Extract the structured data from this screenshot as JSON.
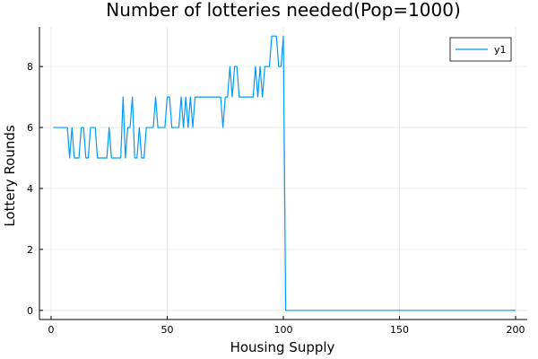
{
  "chart_data": {
    "type": "line",
    "title": "Number of lotteries needed(Pop=1000)",
    "xlabel": "Housing Supply",
    "ylabel": "Lottery Rounds",
    "xlim": [
      -5,
      205
    ],
    "ylim": [
      -0.3,
      9.3
    ],
    "xticks": [
      0,
      50,
      100,
      150,
      200
    ],
    "yticks": [
      0,
      2,
      4,
      6,
      8
    ],
    "grid": true,
    "legend": "top-right",
    "series": [
      {
        "name": "y1",
        "color": "#009af9",
        "x": [
          1,
          2,
          3,
          4,
          5,
          6,
          7,
          8,
          9,
          10,
          11,
          12,
          13,
          14,
          15,
          16,
          17,
          18,
          19,
          20,
          21,
          22,
          23,
          24,
          25,
          26,
          27,
          28,
          29,
          30,
          31,
          32,
          33,
          34,
          35,
          36,
          37,
          38,
          39,
          40,
          41,
          42,
          43,
          44,
          45,
          46,
          47,
          48,
          49,
          50,
          51,
          52,
          53,
          54,
          55,
          56,
          57,
          58,
          59,
          60,
          61,
          62,
          63,
          64,
          65,
          66,
          67,
          68,
          69,
          70,
          71,
          72,
          73,
          74,
          75,
          76,
          77,
          78,
          79,
          80,
          81,
          82,
          83,
          84,
          85,
          86,
          87,
          88,
          89,
          90,
          91,
          92,
          93,
          94,
          95,
          96,
          97,
          98,
          99,
          100,
          101,
          200
        ],
        "values": [
          6,
          6,
          6,
          6,
          6,
          6,
          6,
          5,
          6,
          5,
          5,
          5,
          6,
          6,
          5,
          5,
          6,
          6,
          6,
          5,
          5,
          5,
          5,
          5,
          6,
          5,
          5,
          5,
          5,
          5,
          7,
          5,
          6,
          6,
          7,
          5,
          5,
          6,
          5,
          5,
          6,
          6,
          6,
          6,
          7,
          6,
          6,
          6,
          6,
          7,
          7,
          6,
          6,
          6,
          6,
          7,
          6,
          7,
          6,
          7,
          6,
          7,
          7,
          7,
          7,
          7,
          7,
          7,
          7,
          7,
          7,
          7,
          7,
          6,
          7,
          7,
          8,
          7,
          8,
          8,
          7,
          7,
          7,
          7,
          7,
          7,
          7,
          8,
          7,
          8,
          7,
          8,
          8,
          8,
          9,
          9,
          9,
          8,
          8,
          9,
          0,
          0
        ]
      }
    ]
  }
}
